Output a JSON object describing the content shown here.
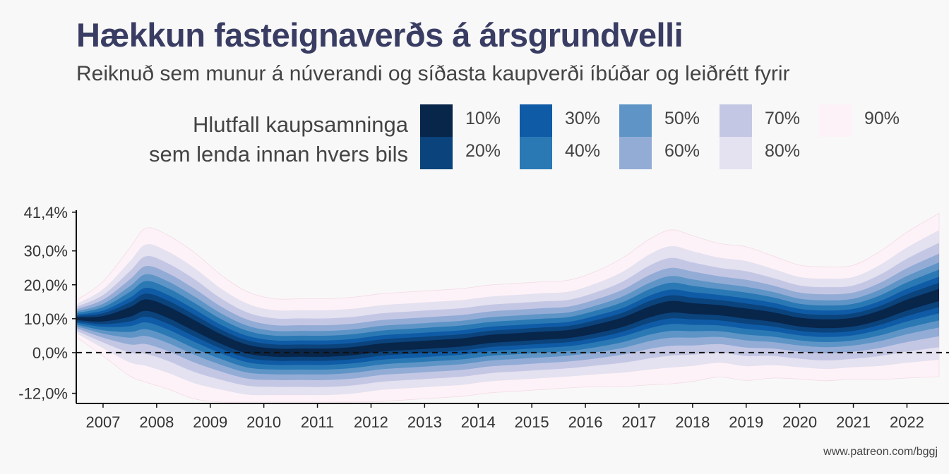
{
  "header": {
    "title": "Hækkun fasteignaverðs á ársgrundvelli",
    "subtitle": "Reiknuð sem munur á núverandi og síðasta kaupverði íbúðar og leiðrétt fyrir"
  },
  "legend": {
    "title_line1": "Hlutfall kaupsamninga",
    "title_line2": "sem lenda innan hvers bils",
    "items": [
      {
        "label": "10%",
        "color": "#08254a"
      },
      {
        "label": "20%",
        "color": "#0b437c"
      },
      {
        "label": "30%",
        "color": "#0f5ba6"
      },
      {
        "label": "40%",
        "color": "#2a79b5"
      },
      {
        "label": "50%",
        "color": "#5e95c6"
      },
      {
        "label": "60%",
        "color": "#93acd6"
      },
      {
        "label": "70%",
        "color": "#c4c7e4"
      },
      {
        "label": "80%",
        "color": "#e4e1f0"
      },
      {
        "label": "90%",
        "color": "#fdf2f7"
      }
    ]
  },
  "source": "www.patreon.com/bggj",
  "chart_data": {
    "type": "area",
    "title": "Hækkun fasteignaverðs á ársgrundvelli",
    "xlabel": "",
    "ylabel": "",
    "xlim": [
      2006.5,
      2022.6
    ],
    "ylim": [
      -12.5,
      42
    ],
    "y_ticks": [
      -12.0,
      0.0,
      10.0,
      20.0,
      30.0,
      41.4
    ],
    "y_tick_labels": [
      "-12,0%",
      "0,0%",
      "10,0%",
      "20,0%",
      "30,0%",
      "41,4%"
    ],
    "x_ticks": [
      2007,
      2008,
      2009,
      2010,
      2011,
      2012,
      2013,
      2014,
      2015,
      2016,
      2017,
      2018,
      2019,
      2020,
      2021,
      2022
    ],
    "reference_line": 0,
    "x": [
      2006.5,
      2007.0,
      2007.5,
      2007.8,
      2008.2,
      2008.7,
      2009.2,
      2009.7,
      2010.2,
      2010.7,
      2011.2,
      2011.7,
      2012.2,
      2012.7,
      2013.2,
      2013.7,
      2014.2,
      2014.7,
      2015.2,
      2015.7,
      2016.2,
      2016.7,
      2017.2,
      2017.6,
      2018.0,
      2018.5,
      2019.0,
      2019.5,
      2020.0,
      2020.5,
      2021.0,
      2021.5,
      2022.0,
      2022.6
    ],
    "median": [
      10,
      10,
      12,
      14,
      12,
      8,
      4,
      1,
      0,
      0,
      0,
      0.5,
      1.5,
      2,
      2.5,
      3,
      4,
      4.5,
      5,
      5.5,
      7,
      9,
      12,
      13.5,
      13,
      12.5,
      11.5,
      10.5,
      9,
      8.5,
      9,
      11,
      14,
      17
    ],
    "bands": [
      {
        "name": "10%",
        "lower": [
          9.6,
          9.2,
          10.6,
          12.3,
          10.3,
          6.4,
          2.6,
          -0.3,
          -1.2,
          -1.2,
          -1.2,
          -0.7,
          0.3,
          0.8,
          1.3,
          1.8,
          2.8,
          3.3,
          3.8,
          4.3,
          5.7,
          7.6,
          10.4,
          11.8,
          11.4,
          11.0,
          10.0,
          9.1,
          7.7,
          7.2,
          7.7,
          9.6,
          12.4,
          15.2
        ],
        "upper": [
          10.4,
          10.8,
          13.4,
          15.7,
          13.7,
          9.6,
          5.4,
          2.3,
          1.2,
          1.2,
          1.2,
          1.7,
          2.7,
          3.2,
          3.7,
          4.2,
          5.2,
          5.7,
          6.2,
          6.7,
          8.3,
          10.4,
          13.6,
          15.2,
          14.6,
          14.0,
          13.0,
          11.9,
          10.3,
          9.8,
          10.3,
          12.4,
          15.6,
          18.8
        ]
      },
      {
        "name": "20%",
        "lower": [
          9.2,
          8.4,
          9.2,
          10.6,
          8.6,
          4.8,
          1.2,
          -1.6,
          -2.4,
          -2.4,
          -2.4,
          -1.9,
          -0.9,
          -0.4,
          0.1,
          0.6,
          1.6,
          2.1,
          2.6,
          3.1,
          4.4,
          6.2,
          8.8,
          10.1,
          9.8,
          9.5,
          8.5,
          7.7,
          6.4,
          5.9,
          6.4,
          8.2,
          10.8,
          13.4
        ],
        "upper": [
          10.8,
          11.6,
          14.8,
          17.4,
          15.4,
          11.2,
          6.8,
          3.6,
          2.4,
          2.4,
          2.4,
          2.9,
          3.9,
          4.4,
          4.9,
          5.4,
          6.4,
          6.9,
          7.4,
          7.9,
          9.6,
          11.8,
          15.2,
          16.9,
          16.2,
          15.5,
          14.5,
          13.3,
          11.6,
          11.1,
          11.6,
          13.8,
          17.2,
          20.6
        ]
      },
      {
        "name": "30%",
        "lower": [
          8.8,
          7.6,
          7.8,
          8.9,
          6.9,
          3.2,
          -0.2,
          -2.9,
          -3.6,
          -3.6,
          -3.6,
          -3.1,
          -2.1,
          -1.6,
          -1.1,
          -0.6,
          0.4,
          0.9,
          1.4,
          1.9,
          3.1,
          4.8,
          7.2,
          8.4,
          8.2,
          8.0,
          7.0,
          6.3,
          5.1,
          4.6,
          5.1,
          6.8,
          9.2,
          11.6
        ],
        "upper": [
          11.2,
          12.4,
          16.2,
          19.1,
          17.1,
          12.8,
          8.2,
          4.9,
          3.6,
          3.6,
          3.6,
          4.1,
          5.1,
          5.6,
          6.1,
          6.6,
          7.6,
          8.1,
          8.6,
          9.1,
          10.9,
          13.2,
          16.8,
          18.6,
          17.8,
          17.0,
          16.0,
          14.7,
          12.9,
          12.4,
          12.9,
          15.2,
          18.8,
          22.4
        ]
      },
      {
        "name": "40%",
        "lower": [
          8.3,
          6.6,
          6.1,
          6.9,
          4.9,
          1.3,
          -1.9,
          -4.4,
          -5.0,
          -5.0,
          -5.0,
          -4.5,
          -3.5,
          -3.0,
          -2.5,
          -2.0,
          -1.0,
          -0.5,
          0.0,
          0.5,
          1.6,
          3.1,
          5.3,
          6.4,
          6.3,
          6.3,
          5.3,
          4.7,
          3.6,
          3.1,
          3.6,
          5.1,
          7.3,
          9.5
        ],
        "upper": [
          11.7,
          13.4,
          17.9,
          21.1,
          19.1,
          14.7,
          9.9,
          6.4,
          5.0,
          5.0,
          5.0,
          5.5,
          6.5,
          7.0,
          7.5,
          8.0,
          9.0,
          9.5,
          10.0,
          10.5,
          12.4,
          14.9,
          18.7,
          20.6,
          19.7,
          18.7,
          17.7,
          16.3,
          14.4,
          13.9,
          14.4,
          16.9,
          20.7,
          24.5
        ]
      },
      {
        "name": "50%",
        "lower": [
          7.8,
          5.6,
          4.4,
          4.9,
          2.9,
          -0.6,
          -3.6,
          -5.9,
          -6.4,
          -6.4,
          -6.4,
          -5.9,
          -4.9,
          -4.4,
          -3.9,
          -3.4,
          -2.4,
          -1.9,
          -1.4,
          -0.9,
          0.1,
          1.4,
          3.4,
          4.4,
          4.4,
          4.6,
          3.6,
          3.1,
          2.1,
          1.6,
          2.1,
          3.4,
          5.4,
          7.4
        ],
        "upper": [
          12.2,
          14.4,
          19.6,
          23.1,
          21.1,
          16.6,
          11.6,
          7.9,
          6.4,
          6.4,
          6.4,
          6.9,
          7.9,
          8.4,
          8.9,
          9.4,
          10.4,
          10.9,
          11.4,
          11.9,
          13.9,
          16.6,
          20.6,
          22.6,
          21.6,
          20.4,
          19.4,
          17.9,
          15.9,
          15.4,
          15.9,
          18.6,
          22.6,
          26.6
        ]
      },
      {
        "name": "60%",
        "lower": [
          7.2,
          4.4,
          2.4,
          2.5,
          0.5,
          -2.9,
          -5.6,
          -7.7,
          -8.1,
          -8.1,
          -8.1,
          -7.6,
          -6.6,
          -6.1,
          -5.6,
          -5.1,
          -4.1,
          -3.6,
          -3.1,
          -2.6,
          -1.7,
          -0.6,
          1.1,
          2.0,
          2.1,
          2.5,
          1.5,
          1.2,
          0.3,
          -0.2,
          0.3,
          1.4,
          3.1,
          4.8
        ],
        "upper": [
          12.8,
          15.6,
          21.6,
          25.5,
          23.5,
          18.9,
          13.6,
          9.7,
          8.1,
          8.1,
          8.1,
          8.6,
          9.6,
          10.1,
          10.6,
          11.1,
          12.1,
          12.6,
          13.1,
          13.6,
          15.7,
          18.6,
          22.9,
          25.0,
          23.9,
          22.5,
          21.5,
          19.8,
          17.7,
          17.2,
          17.7,
          20.6,
          24.9,
          29.2
        ]
      },
      {
        "name": "70%",
        "lower": [
          6.5,
          3.0,
          0.0,
          -0.4,
          -2.4,
          -5.7,
          -8.0,
          -9.8,
          -10.1,
          -10.1,
          -10.1,
          -9.6,
          -8.6,
          -8.1,
          -7.6,
          -7.1,
          -6.1,
          -5.6,
          -5.1,
          -4.6,
          -3.8,
          -3.0,
          -1.7,
          -0.9,
          -0.6,
          0.0,
          -1.0,
          -1.0,
          -1.8,
          -2.3,
          -1.8,
          -1.0,
          0.3,
          1.6
        ],
        "upper": [
          13.5,
          17.0,
          24.0,
          28.4,
          26.4,
          21.7,
          16.0,
          11.8,
          10.1,
          10.1,
          10.1,
          10.6,
          11.6,
          12.1,
          12.6,
          13.1,
          14.1,
          14.6,
          15.1,
          15.6,
          17.8,
          21.0,
          25.7,
          27.9,
          26.6,
          25.0,
          24.0,
          22.0,
          19.8,
          19.3,
          19.8,
          23.0,
          27.7,
          32.4
        ]
      },
      {
        "name": "80%",
        "lower": [
          5.7,
          1.3,
          -2.9,
          -3.9,
          -5.9,
          -9.0,
          -10.9,
          -12.4,
          -12.5,
          -12.5,
          -12.5,
          -12.0,
          -11.0,
          -10.5,
          -10.0,
          -9.5,
          -8.5,
          -8.0,
          -7.5,
          -7.0,
          -6.4,
          -5.9,
          -5.0,
          -4.4,
          -3.9,
          -3.0,
          -4.0,
          -3.7,
          -4.3,
          -4.8,
          -4.3,
          -3.9,
          -3.0,
          -2.1
        ],
        "upper": [
          14.3,
          18.7,
          26.9,
          31.9,
          29.9,
          25.0,
          18.9,
          14.4,
          12.5,
          12.5,
          12.5,
          13.0,
          14.0,
          14.5,
          15.0,
          15.5,
          16.5,
          17.0,
          17.5,
          18.0,
          20.4,
          23.9,
          29.0,
          31.4,
          29.9,
          28.0,
          27.0,
          24.7,
          22.3,
          21.8,
          22.3,
          25.9,
          31.0,
          36.1
        ]
      },
      {
        "name": "90%",
        "lower": [
          4.6,
          -1.0,
          -6.9,
          -8.7,
          -10.7,
          -13.6,
          -14.9,
          -15.9,
          -15.9,
          -15.9,
          -15.9,
          -15.4,
          -14.4,
          -13.9,
          -13.4,
          -12.9,
          -11.9,
          -11.4,
          -10.9,
          -10.4,
          -10.0,
          -10.0,
          -9.5,
          -9.2,
          -8.5,
          -7.2,
          -8.2,
          -7.5,
          -7.8,
          -8.3,
          -7.8,
          -7.9,
          -7.5,
          -7.1
        ],
        "upper": [
          15.4,
          21.0,
          30.9,
          36.7,
          34.7,
          29.6,
          22.9,
          17.9,
          15.9,
          15.9,
          15.9,
          16.4,
          17.4,
          17.9,
          18.4,
          18.9,
          19.9,
          20.4,
          20.9,
          21.4,
          24.0,
          28.0,
          33.5,
          36.2,
          34.5,
          32.2,
          31.2,
          28.5,
          25.8,
          25.3,
          25.8,
          29.9,
          35.5,
          41.1
        ]
      }
    ]
  }
}
